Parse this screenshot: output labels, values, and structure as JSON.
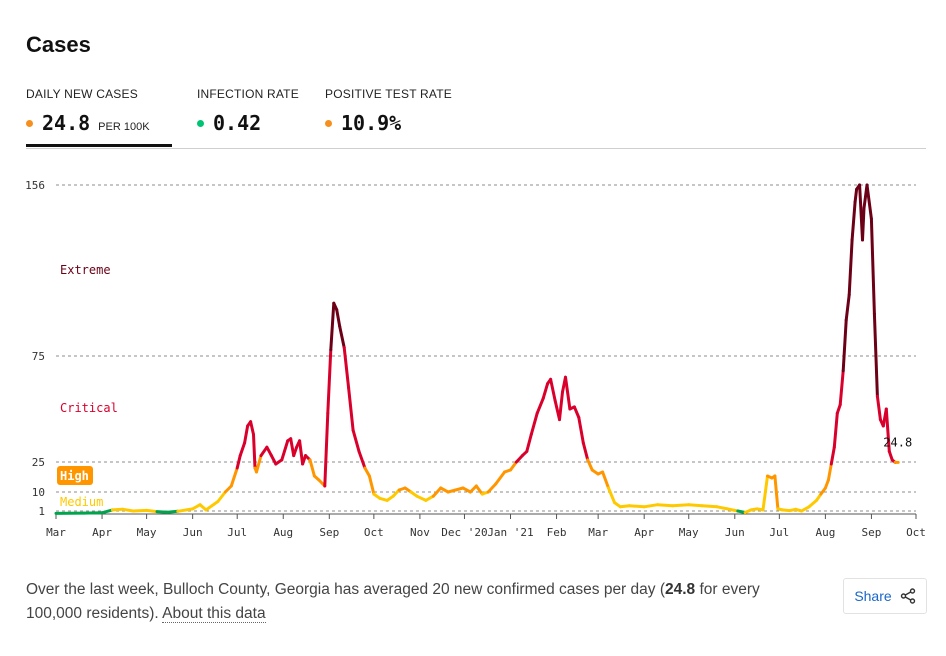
{
  "header": {
    "title": "Cases"
  },
  "tabs": [
    {
      "label": "DAILY NEW CASES",
      "value": "24.8",
      "unit": "PER 100K",
      "dot_color": "#f5901e"
    },
    {
      "label": "INFECTION RATE",
      "value": "0.42",
      "unit": "",
      "dot_color": "#00c474"
    },
    {
      "label": "POSITIVE TEST RATE",
      "value": "10.9%",
      "unit": "",
      "dot_color": "#f5901e"
    }
  ],
  "footer": {
    "text_before": "Over the last week, Bulloch County, Georgia has averaged 20 new confirmed cases per day (",
    "highlight": "24.8",
    "text_after": " for every 100,000 residents). ",
    "link": "About this data"
  },
  "share": {
    "label": "Share",
    "icon": "share-icon"
  },
  "chart_data": {
    "type": "line",
    "y_ticks": [
      1,
      10,
      25,
      75,
      156
    ],
    "x_ticks": [
      "Mar",
      "Apr",
      "May",
      "Jun",
      "Jul",
      "Aug",
      "Sep",
      "Oct",
      "Nov",
      "Dec '20",
      "Jan '21",
      "Feb",
      "Mar",
      "Apr",
      "May",
      "Jun",
      "Jul",
      "Aug",
      "Sep",
      "Oct"
    ],
    "x_range": [
      "2020-03-01",
      "2021-10-01"
    ],
    "grid": true,
    "zones": [
      {
        "label": "Extreme",
        "min": 75,
        "color": "#6b0017"
      },
      {
        "label": "Critical",
        "min": 25,
        "max": 75,
        "color": "#d9002c"
      },
      {
        "label": "High",
        "min": 10,
        "max": 25,
        "color": "#ff9600"
      },
      {
        "label": "Medium",
        "min": 1,
        "max": 10,
        "color": "#ffc900"
      }
    ],
    "last_value_label": "24.8",
    "series": [
      {
        "values": [
          [
            "2020-03-01",
            0.2
          ],
          [
            "2020-03-20",
            0.3
          ],
          [
            "2020-04-01",
            0.4
          ],
          [
            "2020-04-08",
            1.5
          ],
          [
            "2020-04-15",
            1.8
          ],
          [
            "2020-04-22",
            1.0
          ],
          [
            "2020-05-01",
            1.3
          ],
          [
            "2020-05-08",
            0.8
          ],
          [
            "2020-05-15",
            0.6
          ],
          [
            "2020-05-22",
            0.9
          ],
          [
            "2020-06-01",
            2.0
          ],
          [
            "2020-06-06",
            4.0
          ],
          [
            "2020-06-10",
            1.5
          ],
          [
            "2020-06-14",
            3.5
          ],
          [
            "2020-06-18",
            5.5
          ],
          [
            "2020-06-23",
            10
          ],
          [
            "2020-06-27",
            13
          ],
          [
            "2020-07-01",
            22
          ],
          [
            "2020-07-03",
            28
          ],
          [
            "2020-07-06",
            34
          ],
          [
            "2020-07-08",
            42
          ],
          [
            "2020-07-10",
            44
          ],
          [
            "2020-07-12",
            38
          ],
          [
            "2020-07-13",
            22
          ],
          [
            "2020-07-14",
            20
          ],
          [
            "2020-07-17",
            28
          ],
          [
            "2020-07-21",
            32
          ],
          [
            "2020-07-24",
            28
          ],
          [
            "2020-07-27",
            24
          ],
          [
            "2020-07-31",
            26
          ],
          [
            "2020-08-04",
            35
          ],
          [
            "2020-08-06",
            36
          ],
          [
            "2020-08-08",
            28
          ],
          [
            "2020-08-10",
            32
          ],
          [
            "2020-08-12",
            35
          ],
          [
            "2020-08-14",
            24
          ],
          [
            "2020-08-16",
            28
          ],
          [
            "2020-08-19",
            26
          ],
          [
            "2020-08-22",
            18
          ],
          [
            "2020-08-25",
            16
          ],
          [
            "2020-08-29",
            13
          ],
          [
            "2020-08-31",
            48
          ],
          [
            "2020-09-02",
            78
          ],
          [
            "2020-09-04",
            100
          ],
          [
            "2020-09-06",
            97
          ],
          [
            "2020-09-08",
            89
          ],
          [
            "2020-09-11",
            79
          ],
          [
            "2020-09-14",
            60
          ],
          [
            "2020-09-17",
            40
          ],
          [
            "2020-09-21",
            30
          ],
          [
            "2020-09-25",
            22
          ],
          [
            "2020-09-28",
            18
          ],
          [
            "2020-10-01",
            9
          ],
          [
            "2020-10-05",
            7
          ],
          [
            "2020-10-10",
            6
          ],
          [
            "2020-10-14",
            8
          ],
          [
            "2020-10-18",
            11
          ],
          [
            "2020-10-22",
            12
          ],
          [
            "2020-10-26",
            10
          ],
          [
            "2020-10-30",
            8
          ],
          [
            "2020-11-05",
            6
          ],
          [
            "2020-11-10",
            8
          ],
          [
            "2020-11-15",
            12
          ],
          [
            "2020-11-20",
            10
          ],
          [
            "2020-11-25",
            11
          ],
          [
            "2020-11-30",
            12
          ],
          [
            "2020-12-05",
            10
          ],
          [
            "2020-12-09",
            13
          ],
          [
            "2020-12-13",
            9
          ],
          [
            "2020-12-17",
            10
          ],
          [
            "2020-12-22",
            14
          ],
          [
            "2020-12-28",
            20
          ],
          [
            "2021-01-01",
            21
          ],
          [
            "2021-01-05",
            25
          ],
          [
            "2021-01-09",
            28
          ],
          [
            "2021-01-12",
            30
          ],
          [
            "2021-01-15",
            38
          ],
          [
            "2021-01-19",
            48
          ],
          [
            "2021-01-23",
            55
          ],
          [
            "2021-01-26",
            62
          ],
          [
            "2021-01-28",
            64
          ],
          [
            "2021-01-31",
            54
          ],
          [
            "2021-02-03",
            45
          ],
          [
            "2021-02-05",
            58
          ],
          [
            "2021-02-07",
            65
          ],
          [
            "2021-02-10",
            50
          ],
          [
            "2021-02-13",
            51
          ],
          [
            "2021-02-16",
            46
          ],
          [
            "2021-02-19",
            34
          ],
          [
            "2021-02-22",
            26
          ],
          [
            "2021-02-25",
            21
          ],
          [
            "2021-03-01",
            19
          ],
          [
            "2021-03-04",
            20
          ],
          [
            "2021-03-08",
            12
          ],
          [
            "2021-03-12",
            5
          ],
          [
            "2021-03-16",
            3
          ],
          [
            "2021-03-22",
            3.5
          ],
          [
            "2021-04-01",
            3
          ],
          [
            "2021-04-10",
            4
          ],
          [
            "2021-04-20",
            3.5
          ],
          [
            "2021-05-01",
            4
          ],
          [
            "2021-05-10",
            3.5
          ],
          [
            "2021-05-20",
            3
          ],
          [
            "2021-05-27",
            2
          ],
          [
            "2021-06-03",
            1
          ],
          [
            "2021-06-08",
            0.5
          ],
          [
            "2021-06-12",
            1.5
          ],
          [
            "2021-06-16",
            2
          ],
          [
            "2021-06-20",
            1.5
          ],
          [
            "2021-06-23",
            18
          ],
          [
            "2021-06-26",
            17
          ],
          [
            "2021-06-28",
            18
          ],
          [
            "2021-06-30",
            2
          ],
          [
            "2021-07-03",
            1.5
          ],
          [
            "2021-07-08",
            1.2
          ],
          [
            "2021-07-12",
            1.8
          ],
          [
            "2021-07-16",
            1.0
          ],
          [
            "2021-07-21",
            3
          ],
          [
            "2021-07-26",
            6
          ],
          [
            "2021-07-29",
            9
          ],
          [
            "2021-08-01",
            12
          ],
          [
            "2021-08-03",
            16
          ],
          [
            "2021-08-05",
            24
          ],
          [
            "2021-08-07",
            32
          ],
          [
            "2021-08-09",
            48
          ],
          [
            "2021-08-11",
            52
          ],
          [
            "2021-08-13",
            68
          ],
          [
            "2021-08-15",
            92
          ],
          [
            "2021-08-17",
            104
          ],
          [
            "2021-08-19",
            130
          ],
          [
            "2021-08-21",
            148
          ],
          [
            "2021-08-22",
            154
          ],
          [
            "2021-08-24",
            156
          ],
          [
            "2021-08-26",
            130
          ],
          [
            "2021-08-27",
            145
          ],
          [
            "2021-08-29",
            156
          ],
          [
            "2021-09-01",
            140
          ],
          [
            "2021-09-03",
            95
          ],
          [
            "2021-09-05",
            56
          ],
          [
            "2021-09-07",
            45
          ],
          [
            "2021-09-09",
            42
          ],
          [
            "2021-09-11",
            50
          ],
          [
            "2021-09-13",
            30
          ],
          [
            "2021-09-15",
            26
          ],
          [
            "2021-09-17",
            24.8
          ],
          [
            "2021-09-19",
            24.8
          ]
        ]
      }
    ]
  }
}
